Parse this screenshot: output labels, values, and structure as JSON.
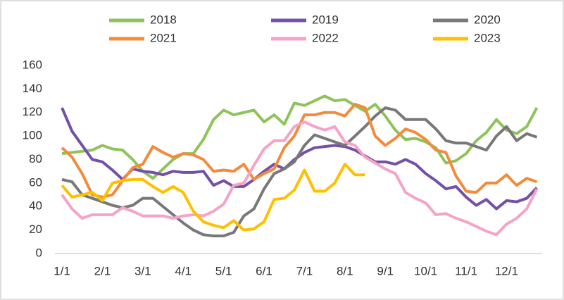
{
  "chart_data": {
    "type": "line",
    "categories": [
      "1/1",
      null,
      null,
      null,
      "2/1",
      null,
      null,
      null,
      "3/1",
      null,
      null,
      null,
      "4/1",
      null,
      null,
      null,
      "5/1",
      null,
      null,
      null,
      "6/1",
      null,
      null,
      null,
      "7/1",
      null,
      null,
      null,
      "8/1",
      null,
      null,
      null,
      "9/1",
      null,
      null,
      null,
      "10/1",
      null,
      null,
      null,
      "11/1",
      null,
      null,
      null,
      "12/1",
      null,
      null,
      null
    ],
    "series": [
      {
        "name": "2018",
        "color": "#8fc35a",
        "values": [
          85,
          86,
          87,
          88,
          92,
          89,
          88,
          80,
          70,
          64,
          72,
          80,
          85,
          85,
          97,
          114,
          122,
          118,
          120,
          122,
          112,
          118,
          110,
          128,
          126,
          130,
          134,
          130,
          131,
          126,
          121,
          127,
          117,
          105,
          97,
          98,
          95,
          90,
          77,
          79,
          85,
          96,
          103,
          114,
          105,
          102,
          108,
          124
        ]
      },
      {
        "name": "2019",
        "color": "#7451a6",
        "values": [
          124,
          104,
          92,
          80,
          78,
          71,
          63,
          72,
          70,
          69,
          67,
          70,
          69,
          69,
          70,
          58,
          62,
          57,
          57,
          63,
          70,
          76,
          72,
          80,
          86,
          90,
          91,
          92,
          91,
          88,
          83,
          78,
          78,
          76,
          80,
          76,
          68,
          62,
          55,
          57,
          48,
          41,
          46,
          38,
          45,
          44,
          47,
          56
        ]
      },
      {
        "name": "2020",
        "color": "#787878",
        "values": [
          63,
          61,
          50,
          47,
          44,
          41,
          39,
          41,
          47,
          47,
          40,
          33,
          26,
          20,
          16,
          15,
          15,
          18,
          32,
          38,
          55,
          68,
          72,
          78,
          92,
          101,
          98,
          95,
          92,
          100,
          108,
          117,
          124,
          122,
          114,
          114,
          114,
          106,
          96,
          94,
          94,
          91,
          88,
          100,
          108,
          96,
          102,
          99
        ]
      },
      {
        "name": "2021",
        "color": "#f28c3c",
        "values": [
          90,
          82,
          68,
          50,
          48,
          50,
          62,
          73,
          76,
          91,
          86,
          82,
          85,
          84,
          80,
          70,
          71,
          70,
          76,
          63,
          68,
          72,
          90,
          100,
          118,
          118,
          120,
          120,
          117,
          127,
          124,
          100,
          92,
          98,
          106,
          103,
          97,
          88,
          86,
          66,
          53,
          52,
          60,
          60,
          67,
          58,
          64,
          61
        ]
      },
      {
        "name": "2022",
        "color": "#f5a3c7",
        "values": [
          50,
          38,
          30,
          33,
          33,
          33,
          39,
          36,
          32,
          32,
          32,
          30,
          32,
          33,
          32,
          36,
          42,
          58,
          60,
          75,
          89,
          96,
          96,
          108,
          112,
          108,
          105,
          108,
          95,
          92,
          82,
          77,
          72,
          68,
          52,
          47,
          43,
          33,
          34,
          30,
          27,
          23,
          19,
          16,
          25,
          30,
          38,
          55
        ]
      },
      {
        "name": "2023",
        "color": "#ffc000",
        "values": [
          58,
          48,
          50,
          52,
          45,
          60,
          62,
          63,
          63,
          57,
          52,
          57,
          52,
          36,
          27,
          24,
          22,
          28,
          20,
          21,
          27,
          46,
          47,
          54,
          71,
          53,
          53,
          60,
          76,
          67,
          67,
          null,
          null,
          null,
          null,
          null,
          null,
          null,
          null,
          null,
          null,
          null,
          null,
          null,
          null,
          null,
          null,
          null
        ]
      }
    ],
    "ylim": [
      0,
      160
    ],
    "yticks": [
      0,
      20,
      40,
      60,
      80,
      100,
      120,
      140,
      160
    ]
  }
}
